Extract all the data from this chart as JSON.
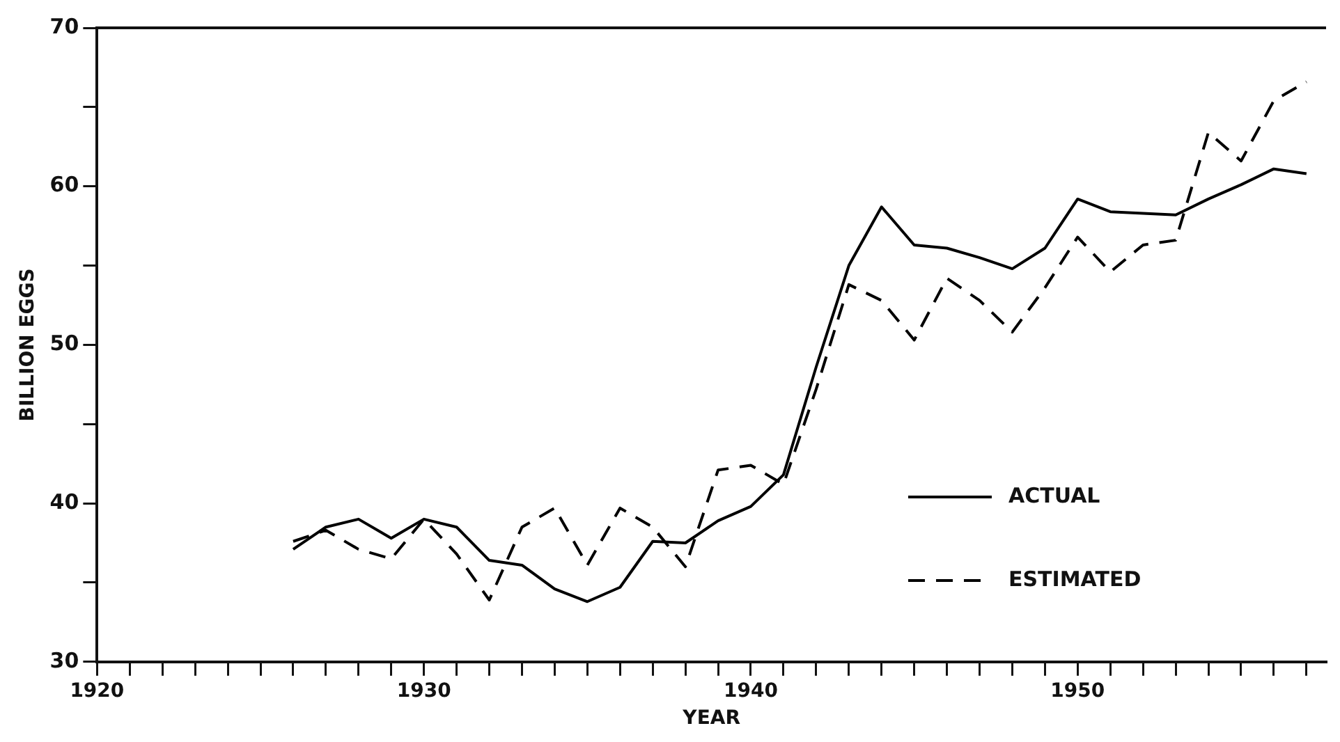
{
  "chart_data": {
    "type": "line",
    "xlabel": "YEAR",
    "ylabel": "BILLION EGGS",
    "xlim": [
      1920,
      1957.6
    ],
    "ylim": [
      30,
      70
    ],
    "xticks": [
      1920,
      {
        "value": 1921,
        "label": null
      },
      {
        "value": 1922,
        "label": null
      },
      {
        "value": 1923,
        "label": null
      },
      {
        "value": 1924,
        "label": null
      },
      {
        "value": 1925,
        "label": null
      },
      {
        "value": 1926,
        "label": null
      },
      {
        "value": 1927,
        "label": null
      },
      {
        "value": 1928,
        "label": null
      },
      {
        "value": 1929,
        "label": null
      },
      1930,
      {
        "value": 1931,
        "label": null
      },
      {
        "value": 1932,
        "label": null
      },
      {
        "value": 1933,
        "label": null
      },
      {
        "value": 1934,
        "label": null
      },
      {
        "value": 1935,
        "label": null
      },
      {
        "value": 1936,
        "label": null
      },
      {
        "value": 1937,
        "label": null
      },
      {
        "value": 1938,
        "label": null
      },
      {
        "value": 1939,
        "label": null
      },
      1940,
      {
        "value": 1941,
        "label": null
      },
      {
        "value": 1942,
        "label": null
      },
      {
        "value": 1943,
        "label": null
      },
      {
        "value": 1944,
        "label": null
      },
      {
        "value": 1945,
        "label": null
      },
      {
        "value": 1946,
        "label": null
      },
      {
        "value": 1947,
        "label": null
      },
      {
        "value": 1948,
        "label": null
      },
      {
        "value": 1949,
        "label": null
      },
      1950,
      {
        "value": 1951,
        "label": null
      },
      {
        "value": 1952,
        "label": null
      },
      {
        "value": 1953,
        "label": null
      },
      {
        "value": 1954,
        "label": null
      },
      {
        "value": 1955,
        "label": null
      },
      {
        "value": 1956,
        "label": null
      },
      {
        "value": 1957,
        "label": null
      }
    ],
    "yticks": [
      30,
      {
        "value": 35,
        "label": null
      },
      40,
      {
        "value": 45,
        "label": null
      },
      50,
      {
        "value": 55,
        "label": null
      },
      60,
      {
        "value": 65,
        "label": null
      },
      70
    ],
    "x": [
      1926,
      1927,
      1928,
      1929,
      1930,
      1931,
      1932,
      1933,
      1934,
      1935,
      1936,
      1937,
      1938,
      1939,
      1940,
      1941,
      1942,
      1943,
      1944,
      1945,
      1946,
      1947,
      1948,
      1949,
      1950,
      1951,
      1952,
      1953,
      1954,
      1955,
      1956,
      1957
    ],
    "series": [
      {
        "name": "ACTUAL",
        "color": "#000000",
        "line_style": "solid",
        "values": [
          37.1,
          38.5,
          39.0,
          37.8,
          39.0,
          38.5,
          36.4,
          36.1,
          34.6,
          33.8,
          34.7,
          37.6,
          37.5,
          38.9,
          39.8,
          41.8,
          48.6,
          55.0,
          58.7,
          56.3,
          56.1,
          55.5,
          54.8,
          56.1,
          59.2,
          58.4,
          58.3,
          58.2,
          59.2,
          60.1,
          61.1,
          60.8
        ]
      },
      {
        "name": "ESTIMATED",
        "color": "#000000",
        "line_style": "dashed",
        "values": [
          37.6,
          38.3,
          37.1,
          36.5,
          39.0,
          36.8,
          33.9,
          38.5,
          39.7,
          36.1,
          39.7,
          38.5,
          36.0,
          42.1,
          42.4,
          41.2,
          47.2,
          53.8,
          52.8,
          50.3,
          54.2,
          52.8,
          50.8,
          53.6,
          56.8,
          54.6,
          56.3,
          56.6,
          63.4,
          61.6,
          65.4,
          66.6
        ]
      }
    ],
    "legend": "bottom right",
    "marker": "none",
    "grid": false
  }
}
